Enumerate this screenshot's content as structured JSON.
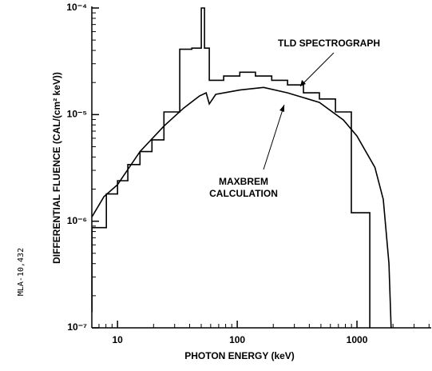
{
  "chart_data": {
    "type": "line",
    "xlabel": "PHOTON ENERGY (keV)",
    "ylabel": "DIFFERENTIAL FLUENCE (CAL/(cm² keV))",
    "side_note": "MLA-10,432",
    "xscale": "log",
    "yscale": "log",
    "xlim": [
      6.1,
      4170
    ],
    "ylim": [
      1e-07,
      0.0001
    ],
    "xticks": [
      10,
      100,
      1000
    ],
    "yticks": [
      {
        "value": 1e-07,
        "label": "10⁻⁷"
      },
      {
        "value": 1e-06,
        "label": "10⁻⁶"
      },
      {
        "value": 1e-05,
        "label": "10⁻⁵"
      },
      {
        "value": 0.0001,
        "label": "10⁻⁴"
      }
    ],
    "minor_ticks": true,
    "series": [
      {
        "name": "TLD SPECTROGRAPH",
        "color": "#000000",
        "x": [
          6.12,
          6.12,
          8.07,
          8.07,
          10,
          10,
          12.2,
          12.2,
          15.4,
          15.4,
          19.4,
          19.4,
          24.4,
          24.4,
          33.1,
          33.1,
          41.7,
          41.7,
          50.1,
          50.1,
          53.3,
          53.3,
          58.4,
          58.4,
          77.0,
          77.0,
          105,
          105,
          142,
          142,
          194,
          194,
          263,
          263,
          357,
          357,
          486,
          486,
          661,
          661,
          898,
          898,
          1279,
          1279
        ],
        "values": [
          1.4e-07,
          8.7e-07,
          8.7e-07,
          1.8e-06,
          1.8e-06,
          2.4e-06,
          2.4e-06,
          3.4e-06,
          3.4e-06,
          4.5e-06,
          4.5e-06,
          5.8e-06,
          5.8e-06,
          1.06e-05,
          1.06e-05,
          4.1e-05,
          4.1e-05,
          4.2e-05,
          4.2e-05,
          0.0001,
          0.0001,
          4.2e-05,
          4.2e-05,
          2.1e-05,
          2.1e-05,
          2.3e-05,
          2.3e-05,
          2.5e-05,
          2.5e-05,
          2.3e-05,
          2.3e-05,
          2.1e-05,
          2.1e-05,
          1.9e-05,
          1.9e-05,
          1.6e-05,
          1.6e-05,
          1.4e-05,
          1.4e-05,
          1.06e-05,
          1.06e-05,
          1.2e-06,
          1.2e-06,
          1e-07
        ]
      },
      {
        "name": "MAXBREM CALCULATION",
        "color": "#000000",
        "x": [
          6.12,
          7.7,
          10,
          15.4,
          24.4,
          35.7,
          48.5,
          55.0,
          58.4,
          66.1,
          105,
          166,
          263,
          486,
          771,
          1000,
          1413,
          1660,
          1850,
          1930
        ],
        "values": [
          1.1e-06,
          1.7e-06,
          2.2e-06,
          4.5e-06,
          7.8e-06,
          1.15e-05,
          1.5e-05,
          1.6e-05,
          1.26e-05,
          1.55e-05,
          1.7e-05,
          1.8e-05,
          1.6e-05,
          1.3e-05,
          8.9e-06,
          6.3e-06,
          3.2e-06,
          1.6e-06,
          4e-07,
          1e-07
        ]
      }
    ]
  }
}
